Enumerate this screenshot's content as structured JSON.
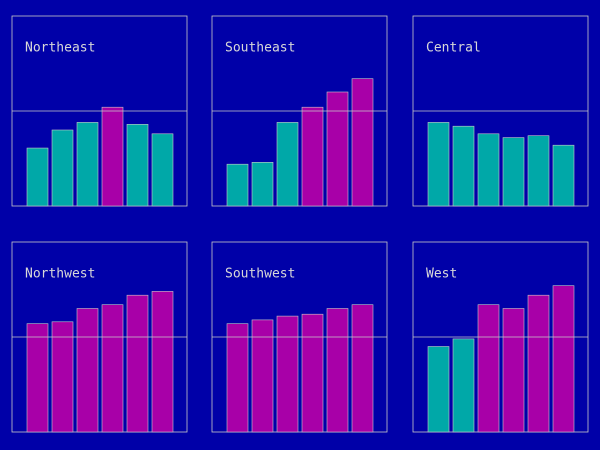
{
  "chart_data": [
    {
      "type": "bar",
      "title": "Northeast",
      "categories": [
        null,
        null,
        null,
        null,
        null,
        null
      ],
      "values": [
        30.5,
        40,
        44,
        52,
        43,
        38
      ],
      "ylim": [
        0,
        100
      ],
      "reference": 50,
      "color": "#00a8a8",
      "above_color": "#a800a8"
    },
    {
      "type": "bar",
      "title": "Southeast",
      "categories": [
        null,
        null,
        null,
        null,
        null,
        null
      ],
      "values": [
        22,
        23,
        44,
        52,
        60,
        67
      ],
      "ylim": [
        0,
        100
      ],
      "reference": 50,
      "color": "#00a8a8",
      "above_color": "#a800a8"
    },
    {
      "type": "bar",
      "title": "Central",
      "categories": [
        null,
        null,
        null,
        null,
        null,
        null
      ],
      "values": [
        44,
        42,
        38,
        36,
        37,
        32
      ],
      "ylim": [
        0,
        100
      ],
      "reference": 50,
      "color": "#00a8a8",
      "above_color": "#a800a8"
    },
    {
      "type": "bar",
      "title": "Northwest",
      "categories": [
        null,
        null,
        null,
        null,
        null,
        null
      ],
      "values": [
        57,
        58,
        65,
        67,
        72,
        74
      ],
      "ylim": [
        0,
        100
      ],
      "reference": 50,
      "color": "#00a8a8",
      "above_color": "#a800a8"
    },
    {
      "type": "bar",
      "title": "Southwest",
      "categories": [
        null,
        null,
        null,
        null,
        null,
        null
      ],
      "values": [
        57,
        59,
        61,
        62,
        65,
        67
      ],
      "ylim": [
        0,
        100
      ],
      "reference": 50,
      "color": "#00a8a8",
      "above_color": "#a800a8"
    },
    {
      "type": "bar",
      "title": "West",
      "categories": [
        null,
        null,
        null,
        null,
        null,
        null
      ],
      "values": [
        45,
        49,
        67,
        65,
        72,
        77
      ],
      "ylim": [
        0,
        100
      ],
      "reference": 50,
      "color": "#00a8a8",
      "above_color": "#a800a8"
    }
  ]
}
